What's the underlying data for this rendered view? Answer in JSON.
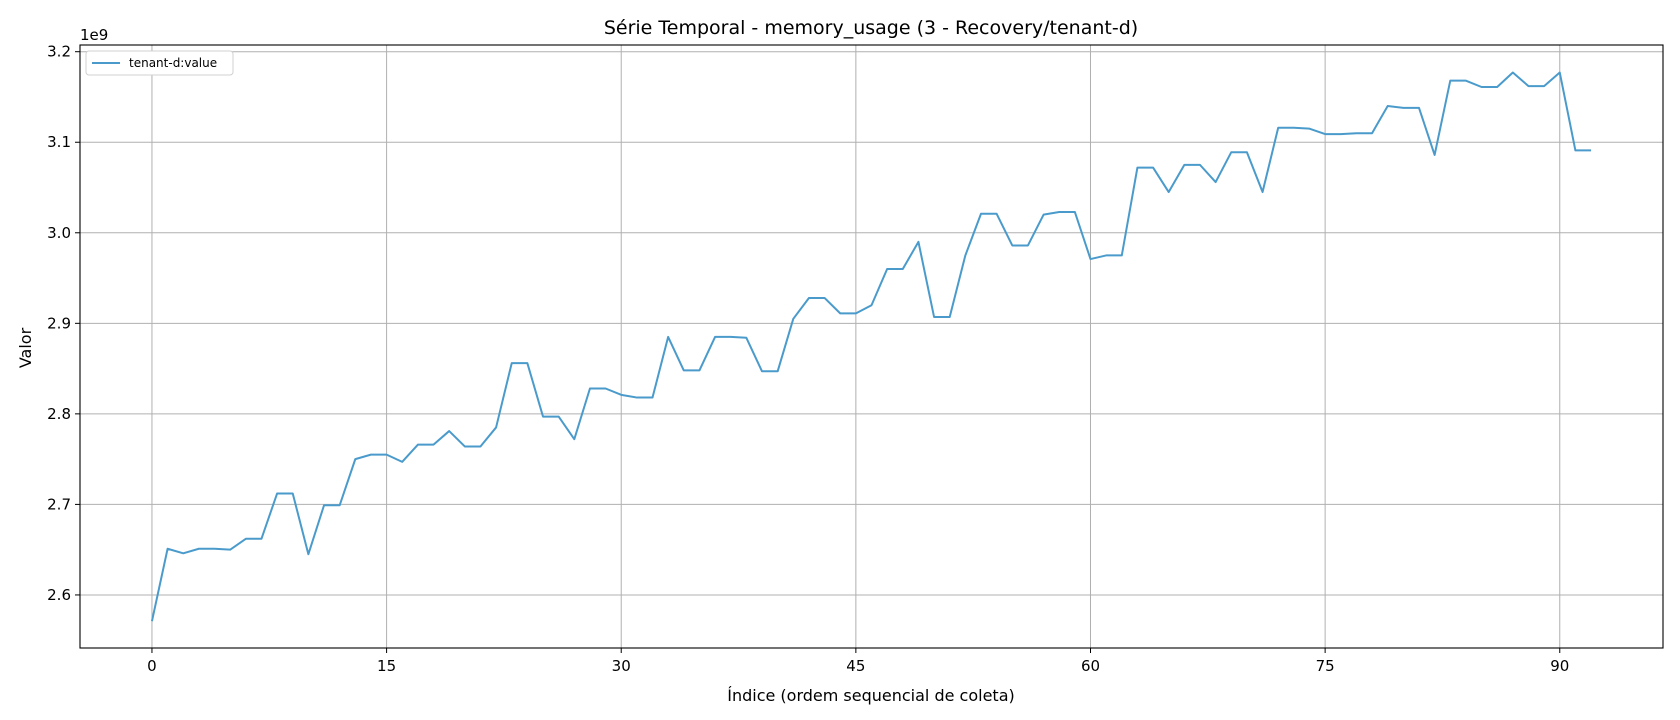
{
  "chart_data": {
    "type": "line",
    "title": "Série Temporal - memory_usage (3 - Recovery/tenant-d)",
    "xlabel": "Índice (ordem sequencial de coleta)",
    "ylabel": "Valor",
    "y_offset_label": "1e9",
    "xlim": [
      -4.6,
      96.6
    ],
    "ylim": [
      2.5414,
      3.2074
    ],
    "x_ticks": [
      0,
      15,
      30,
      45,
      60,
      75,
      90
    ],
    "y_ticks": [
      2.6,
      2.7,
      2.8,
      2.9,
      3.0,
      3.1,
      3.2
    ],
    "y_tick_labels": [
      "2.6",
      "2.7",
      "2.8",
      "2.9",
      "3.0",
      "3.1",
      "3.2"
    ],
    "grid": true,
    "legend_position": "top-left",
    "colors": {
      "series": "#4a9bcb",
      "grid": "#b0b0b0",
      "axes": "#000000"
    },
    "series": [
      {
        "name": "tenant-d:value",
        "values": [
          2.571,
          2.651,
          2.646,
          2.651,
          2.651,
          2.65,
          2.662,
          2.662,
          2.712,
          2.712,
          2.645,
          2.699,
          2.699,
          2.75,
          2.755,
          2.755,
          2.747,
          2.766,
          2.766,
          2.781,
          2.764,
          2.764,
          2.785,
          2.856,
          2.856,
          2.797,
          2.797,
          2.772,
          2.828,
          2.828,
          2.821,
          2.818,
          2.818,
          2.885,
          2.848,
          2.848,
          2.885,
          2.885,
          2.884,
          2.847,
          2.847,
          2.905,
          2.928,
          2.928,
          2.911,
          2.911,
          2.92,
          2.96,
          2.96,
          2.99,
          2.907,
          2.907,
          2.975,
          3.021,
          3.021,
          2.986,
          2.986,
          3.02,
          3.023,
          3.023,
          2.971,
          2.975,
          2.975,
          3.072,
          3.072,
          3.045,
          3.075,
          3.075,
          3.056,
          3.089,
          3.089,
          3.045,
          3.116,
          3.116,
          3.115,
          3.109,
          3.109,
          3.11,
          3.11,
          3.14,
          3.138,
          3.138,
          3.086,
          3.168,
          3.168,
          3.161,
          3.161,
          3.177,
          3.162,
          3.162,
          3.177,
          3.091,
          3.091
        ]
      }
    ]
  }
}
